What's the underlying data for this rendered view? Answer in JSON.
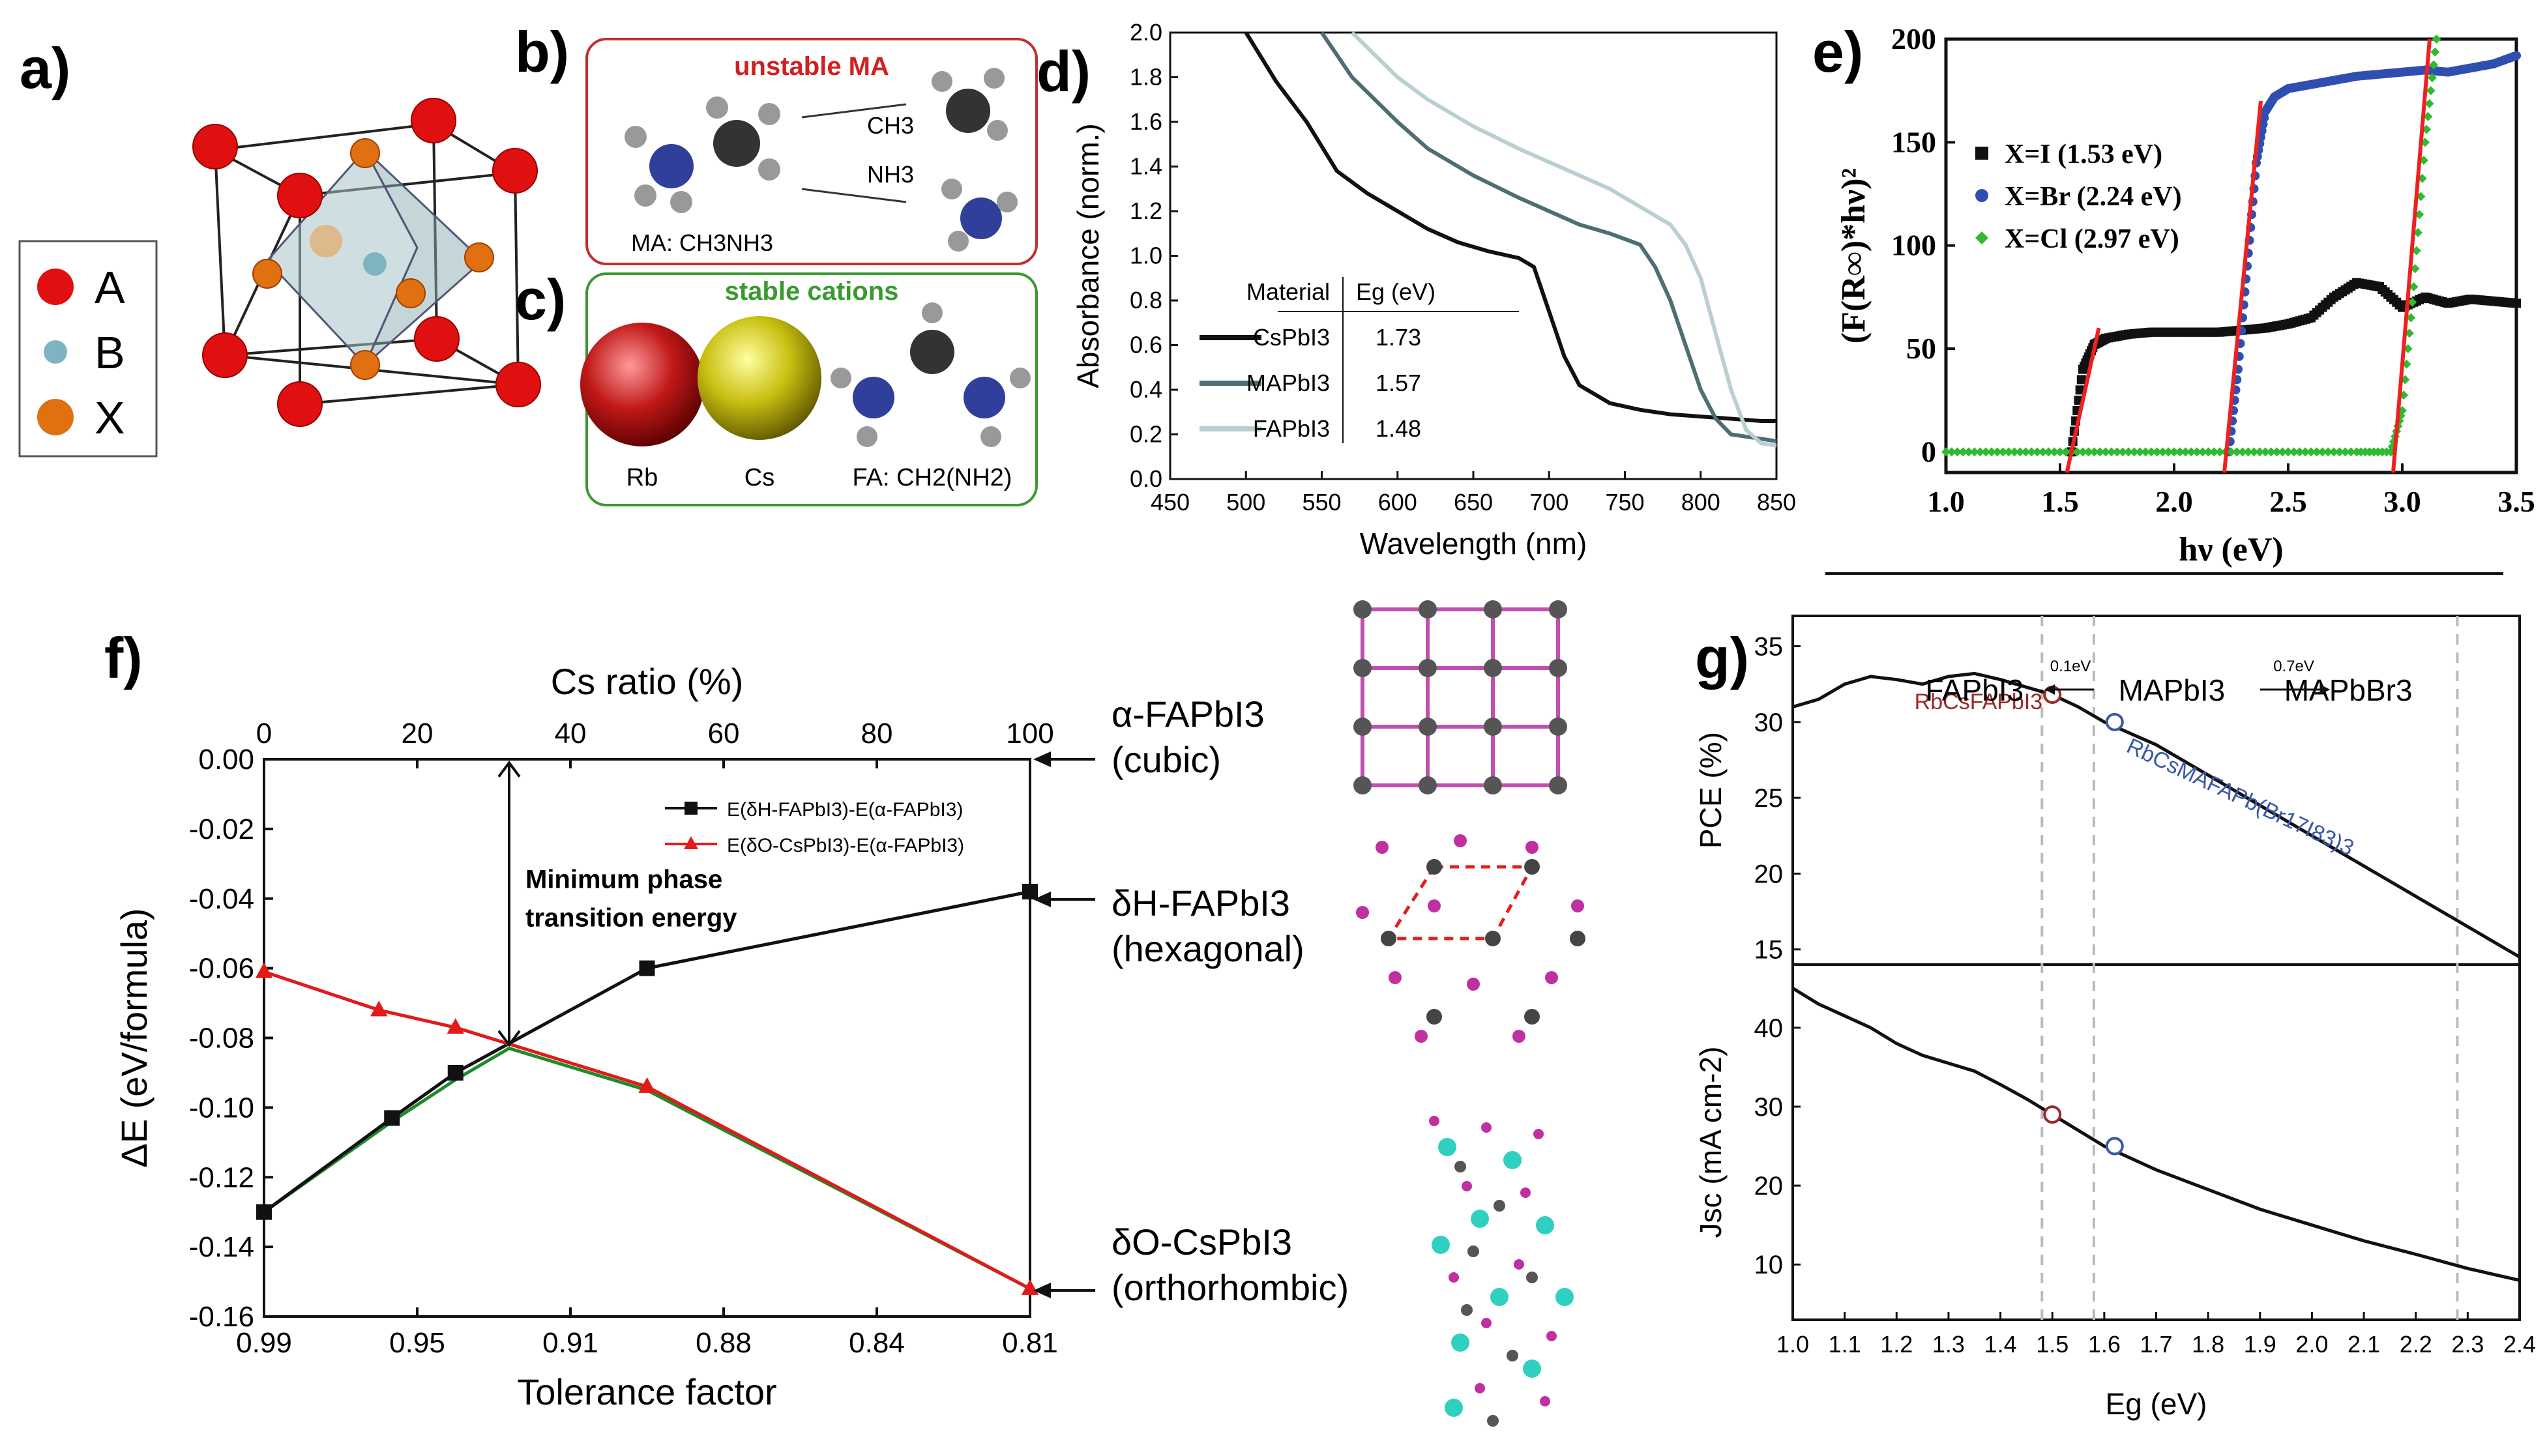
{
  "panels": {
    "a": {
      "label": "a)",
      "legend": [
        {
          "name": "A",
          "color": "#e01010"
        },
        {
          "name": "B",
          "color": "#7fb3c0"
        },
        {
          "name": "X",
          "color": "#e07010"
        }
      ]
    },
    "b": {
      "label": "b)",
      "title": "unstable MA",
      "caption": "MA: CH3NH3",
      "fragment1": "CH3",
      "fragment2": "NH3",
      "title_color": "#d22020"
    },
    "c": {
      "label": "c)",
      "title": "stable cations",
      "title_color": "#3a9a30",
      "cations": [
        "Rb",
        "Cs",
        "FA: CH2(NH2)"
      ]
    },
    "f_side": {
      "phases": [
        {
          "name": "α-FAPbI3",
          "sub": "(cubic)"
        },
        {
          "name": "δH-FAPbI3",
          "sub": "(hexagonal)"
        },
        {
          "name": "δO-CsPbI3",
          "sub": "(orthorhombic)"
        }
      ]
    }
  },
  "chart_data": [
    {
      "panel": "d",
      "label": "d)",
      "type": "line",
      "xlabel": "Wavelength (nm)",
      "ylabel": "Absorbance (norm.)",
      "xlim": [
        450,
        850
      ],
      "ylim": [
        0,
        2.0
      ],
      "xticks": [
        450,
        500,
        550,
        600,
        650,
        700,
        750,
        800,
        850
      ],
      "yticks": [
        0.0,
        0.2,
        0.4,
        0.6,
        0.8,
        1.0,
        1.2,
        1.4,
        1.6,
        1.8,
        2.0
      ],
      "table_headers": [
        "Material",
        "Eg (eV)"
      ],
      "series": [
        {
          "name": "CsPbI3",
          "eg": "1.73",
          "color": "#111111",
          "x": [
            500,
            520,
            540,
            560,
            580,
            600,
            620,
            640,
            660,
            680,
            690,
            700,
            710,
            720,
            740,
            760,
            780,
            800,
            820,
            840,
            850
          ],
          "y": [
            2.0,
            1.78,
            1.6,
            1.38,
            1.28,
            1.2,
            1.12,
            1.06,
            1.02,
            0.99,
            0.95,
            0.75,
            0.55,
            0.42,
            0.34,
            0.31,
            0.29,
            0.28,
            0.27,
            0.26,
            0.26
          ]
        },
        {
          "name": "MAPbI3",
          "eg": "1.57",
          "color": "#4d6f73",
          "x": [
            550,
            570,
            600,
            620,
            650,
            680,
            700,
            720,
            740,
            760,
            770,
            780,
            790,
            800,
            810,
            820,
            850
          ],
          "y": [
            2.0,
            1.8,
            1.6,
            1.48,
            1.36,
            1.26,
            1.2,
            1.14,
            1.1,
            1.05,
            0.95,
            0.8,
            0.6,
            0.4,
            0.27,
            0.2,
            0.17
          ]
        },
        {
          "name": "FAPbI3",
          "eg": "1.48",
          "color": "#b9cfd2",
          "x": [
            570,
            600,
            620,
            650,
            680,
            700,
            720,
            740,
            760,
            780,
            790,
            800,
            810,
            820,
            830,
            840,
            850
          ],
          "y": [
            2.0,
            1.8,
            1.7,
            1.58,
            1.48,
            1.42,
            1.36,
            1.3,
            1.22,
            1.14,
            1.05,
            0.9,
            0.65,
            0.4,
            0.22,
            0.16,
            0.15
          ]
        }
      ]
    },
    {
      "panel": "e",
      "label": "e)",
      "type": "scatter",
      "xlabel": "hν (eV)",
      "ylabel": "(F(R∞)*hν)²",
      "xlim": [
        1.0,
        3.5
      ],
      "ylim": [
        -10,
        200
      ],
      "xticks": [
        1.0,
        1.5,
        2.0,
        2.5,
        3.0,
        3.5
      ],
      "yticks": [
        0,
        50,
        100,
        150,
        200
      ],
      "series": [
        {
          "name": "X=I (1.53 eV)",
          "color": "#111111",
          "marker": "square",
          "x": [
            1.55,
            1.6,
            1.65,
            1.7,
            1.8,
            1.9,
            2.0,
            2.1,
            2.2,
            2.3,
            2.4,
            2.5,
            2.6,
            2.7,
            2.8,
            2.9,
            3.0,
            3.1,
            3.2,
            3.3,
            3.4,
            3.5
          ],
          "y": [
            0,
            40,
            52,
            55,
            57,
            58,
            58,
            58,
            58,
            59,
            60,
            62,
            65,
            75,
            82,
            80,
            70,
            75,
            72,
            74,
            73,
            72
          ]
        },
        {
          "name": "X=Br (2.24 eV)",
          "color": "#2f4fb0",
          "marker": "circle",
          "x": [
            2.24,
            2.28,
            2.32,
            2.36,
            2.4,
            2.44,
            2.5,
            2.6,
            2.7,
            2.8,
            2.9,
            3.0,
            3.1,
            3.2,
            3.3,
            3.4,
            3.5
          ],
          "y": [
            0,
            40,
            90,
            140,
            165,
            172,
            176,
            178,
            180,
            182,
            183,
            184,
            185,
            184,
            186,
            188,
            192
          ]
        },
        {
          "name": "X=Cl (2.97 eV)",
          "color": "#2fbb2f",
          "marker": "diamond",
          "x": [
            1.0,
            1.2,
            1.4,
            1.6,
            1.8,
            2.0,
            2.2,
            2.4,
            2.6,
            2.8,
            2.95,
            3.0,
            3.05,
            3.1,
            3.15
          ],
          "y": [
            0,
            0,
            0,
            0,
            0,
            0,
            0,
            0,
            0,
            0,
            0,
            20,
            80,
            150,
            200
          ]
        }
      ],
      "fit_lines": [
        {
          "x": [
            1.53,
            1.67
          ],
          "y": [
            -10,
            60
          ]
        },
        {
          "x": [
            2.22,
            2.38
          ],
          "y": [
            -10,
            170
          ]
        },
        {
          "x": [
            2.96,
            3.12
          ],
          "y": [
            -10,
            200
          ]
        }
      ]
    },
    {
      "panel": "f",
      "label": "f)",
      "type": "line",
      "xlabel": "Tolerance factor",
      "x2label": "Cs ratio (%)",
      "ylabel": "ΔE (eV/formula)",
      "x_tick_labels": [
        "0.99",
        "0.95",
        "0.91",
        "0.88",
        "0.84",
        "0.81"
      ],
      "x2_tick_labels": [
        "0",
        "20",
        "40",
        "60",
        "80",
        "100"
      ],
      "xlim": [
        0,
        100
      ],
      "ylim": [
        -0.16,
        0.0
      ],
      "yticks": [
        0.0,
        -0.02,
        -0.04,
        -0.06,
        -0.08,
        -0.1,
        -0.12,
        -0.14,
        -0.16
      ],
      "annotation": "Minimum phase transition energy",
      "annotation_x": 32,
      "series": [
        {
          "name": "E(δH-FAPbI3)-E(α-FAPbI3)",
          "color": "#111111",
          "marker": "square",
          "x": [
            0,
            16.7,
            25,
            50,
            100
          ],
          "y": [
            -0.13,
            -0.103,
            -0.09,
            -0.06,
            -0.038
          ]
        },
        {
          "name": "E(δO-CsPbI3)-E(α-FAPbI3)",
          "color": "#e21a1a",
          "marker": "triangle",
          "x": [
            0,
            15,
            25,
            50,
            100
          ],
          "y": [
            -0.061,
            -0.072,
            -0.077,
            -0.094,
            -0.152
          ]
        },
        {
          "name": "",
          "color": "#1f8a2a",
          "marker": "none",
          "x": [
            0,
            16.7,
            25,
            32,
            50,
            100
          ],
          "y": [
            -0.13,
            -0.104,
            -0.092,
            -0.083,
            -0.095,
            -0.152
          ]
        }
      ]
    },
    {
      "panel": "g",
      "label": "g)",
      "type": "line",
      "xlabel": "Eg (eV)",
      "xlim": [
        1.0,
        2.4
      ],
      "xticks": [
        1.0,
        1.1,
        1.2,
        1.3,
        1.4,
        1.5,
        1.6,
        1.7,
        1.8,
        1.9,
        2.0,
        2.1,
        2.2,
        2.3,
        2.4
      ],
      "vlines": [
        1.48,
        1.58,
        2.28
      ],
      "header": [
        "FAPbI3",
        "MAPbI3",
        "MAPbBr3"
      ],
      "header_gaps": [
        "0.1eV",
        "0.7eV"
      ],
      "top": {
        "ylabel": "PCE (%)",
        "ylim": [
          14,
          37
        ],
        "yticks": [
          15,
          20,
          25,
          30,
          35
        ],
        "x": [
          1.0,
          1.05,
          1.1,
          1.15,
          1.2,
          1.25,
          1.3,
          1.35,
          1.4,
          1.45,
          1.5,
          1.55,
          1.6,
          1.7,
          1.8,
          1.9,
          2.0,
          2.1,
          2.2,
          2.3,
          2.4
        ],
        "y": [
          31,
          31.5,
          32.5,
          33,
          32.8,
          32.5,
          33,
          33.2,
          32.8,
          32.3,
          31.8,
          31,
          30,
          28.5,
          26.5,
          24.5,
          22.5,
          20.5,
          18.5,
          16.5,
          14.5
        ],
        "points": [
          {
            "x": 1.5,
            "y": 31.8,
            "label": "RbCsFAPbI3",
            "color": "#9a2a2a"
          },
          {
            "x": 1.62,
            "y": 30,
            "label": "RbCsMAFAPb(Br17I83)3",
            "color": "#3a59a8"
          }
        ]
      },
      "bottom": {
        "ylabel": "Jsc (mA cm-2)",
        "ylim": [
          3,
          48
        ],
        "yticks": [
          10,
          20,
          30,
          40
        ],
        "x": [
          1.0,
          1.05,
          1.1,
          1.15,
          1.2,
          1.25,
          1.3,
          1.35,
          1.4,
          1.45,
          1.5,
          1.6,
          1.7,
          1.8,
          1.9,
          2.0,
          2.1,
          2.2,
          2.3,
          2.4
        ],
        "y": [
          45,
          43,
          41.5,
          40,
          38,
          36.5,
          35.5,
          34.5,
          32.8,
          31,
          29,
          25,
          22,
          19.5,
          17,
          15,
          13,
          11.3,
          9.5,
          8
        ],
        "points": [
          {
            "x": 1.5,
            "y": 29,
            "color": "#9a2a2a"
          },
          {
            "x": 1.62,
            "y": 25,
            "color": "#3a59a8"
          }
        ]
      }
    }
  ]
}
